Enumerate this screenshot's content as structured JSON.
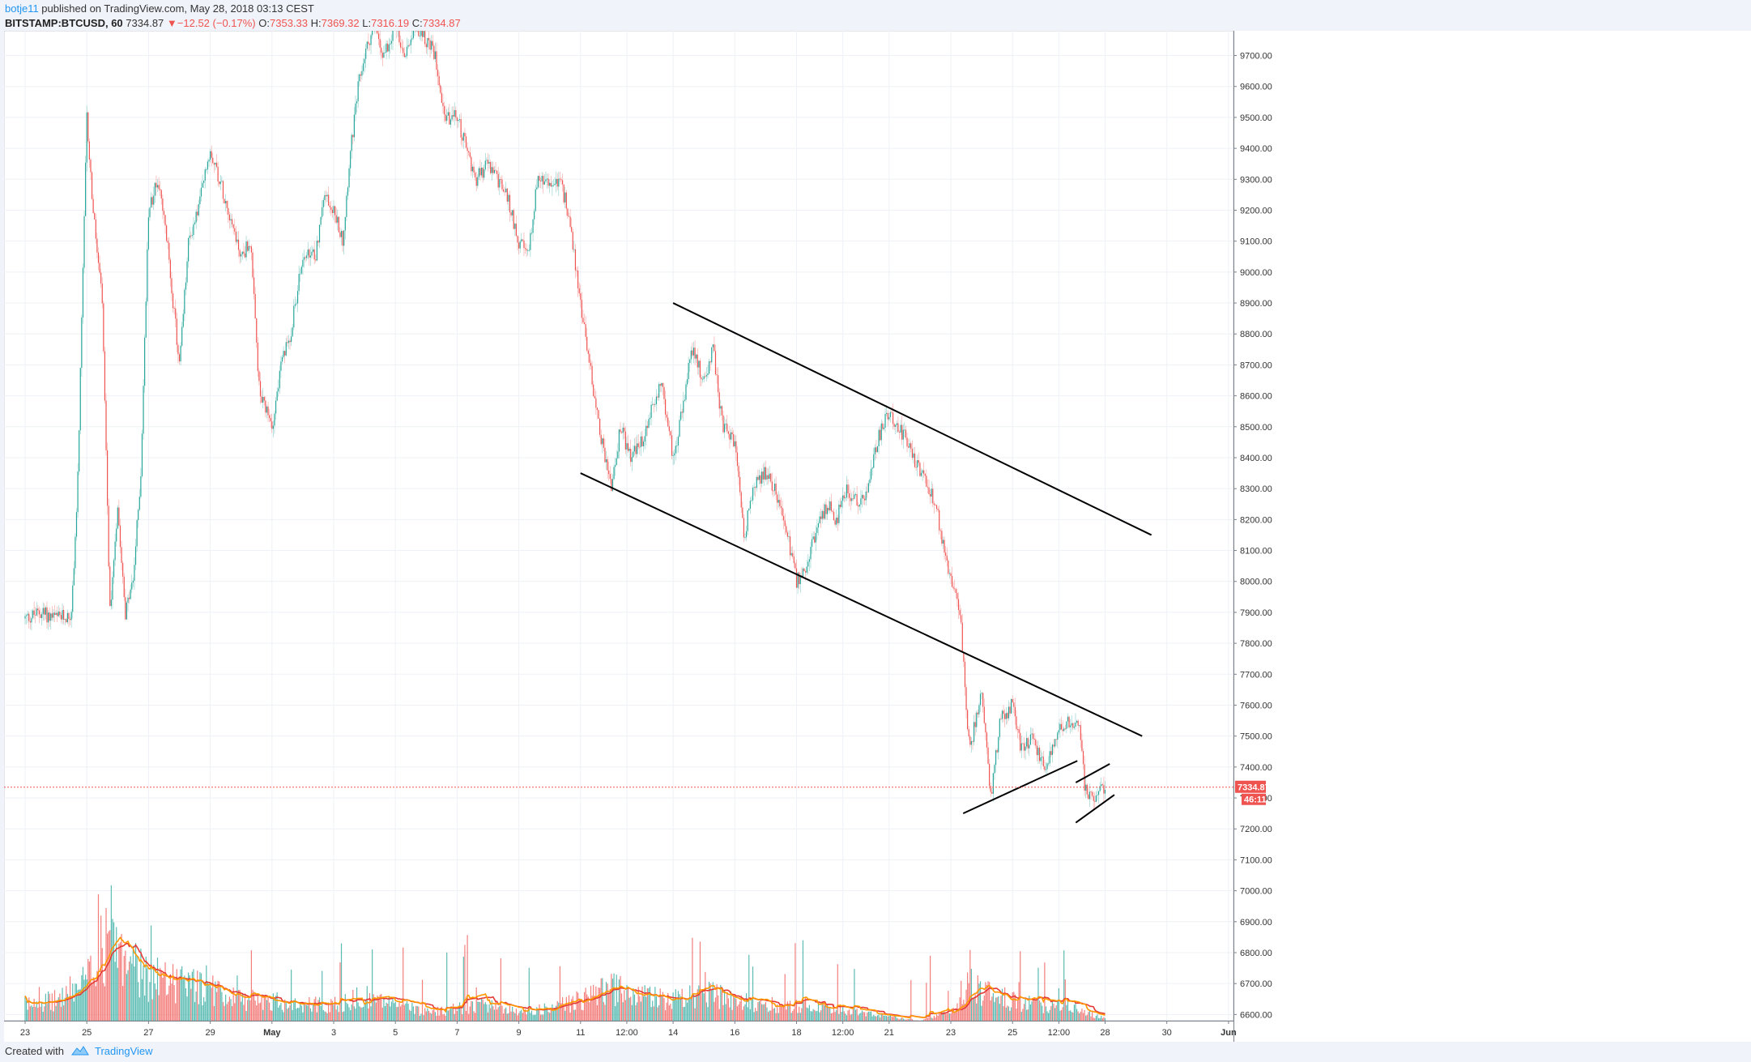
{
  "header": {
    "author": "botje11",
    "published_text": " published on TradingView.com, May 28, 2018 03:13 CEST",
    "symbol": "BITSTAMP:BTCUSD, 60",
    "last_price": "7334.87",
    "down_arrow": "▼",
    "change": "−12.52 (−0.17%)",
    "open_label": "O:",
    "open": "7353.33",
    "high_label": "H:",
    "high": "7369.32",
    "low_label": "L:",
    "low": "7316.19",
    "close_label": "C:",
    "close": "7334.87"
  },
  "footer": {
    "created_with": "Created with",
    "brand": "TradingView"
  },
  "colors": {
    "up": "#26a69a",
    "down": "#ef5350",
    "volume_ma_orange": "#ff9800",
    "volume_ma_red": "#e53935",
    "price_line": "#ef5350",
    "background": "#ffffff",
    "grid": "#eef1f6"
  },
  "chart_data": {
    "type": "candlestick",
    "interval": "60",
    "ylim": [
      6580,
      9780
    ],
    "y_ticks": [
      "9700.00",
      "9600.00",
      "9500.00",
      "9400.00",
      "9300.00",
      "9200.00",
      "9100.00",
      "9000.00",
      "8900.00",
      "8800.00",
      "8700.00",
      "8600.00",
      "8500.00",
      "8400.00",
      "8300.00",
      "8200.00",
      "8100.00",
      "8000.00",
      "7900.00",
      "7800.00",
      "7700.00",
      "7600.00",
      "7500.00",
      "7400.00",
      "7300.00",
      "7200.00",
      "7100.00",
      "7000.00",
      "6900.00",
      "6800.00",
      "6700.00",
      "6600.00"
    ],
    "x_ticks": [
      {
        "label": "23",
        "day": 0
      },
      {
        "label": "25",
        "day": 2
      },
      {
        "label": "27",
        "day": 4
      },
      {
        "label": "29",
        "day": 6
      },
      {
        "label": "May",
        "day": 8
      },
      {
        "label": "3",
        "day": 10
      },
      {
        "label": "5",
        "day": 12
      },
      {
        "label": "7",
        "day": 14
      },
      {
        "label": "9",
        "day": 16
      },
      {
        "label": "11",
        "day": 18
      },
      {
        "label": "12:00",
        "day": 19.5
      },
      {
        "label": "14",
        "day": 21
      },
      {
        "label": "16",
        "day": 23
      },
      {
        "label": "18",
        "day": 25
      },
      {
        "label": "12:00",
        "day": 26.5
      },
      {
        "label": "21",
        "day": 28
      },
      {
        "label": "23",
        "day": 30
      },
      {
        "label": "25",
        "day": 32
      },
      {
        "label": "12:00",
        "day": 33.5
      },
      {
        "label": "28",
        "day": 35
      },
      {
        "label": "30",
        "day": 37
      },
      {
        "label": "Jun",
        "day": 39
      }
    ],
    "price_path": [
      [
        0,
        7880
      ],
      [
        0.5,
        7900
      ],
      [
        1,
        7880
      ],
      [
        1.5,
        7890
      ],
      [
        1.7,
        8300
      ],
      [
        2.0,
        9500
      ],
      [
        2.2,
        9200
      ],
      [
        2.5,
        8900
      ],
      [
        2.75,
        7900
      ],
      [
        3.0,
        8250
      ],
      [
        3.25,
        7900
      ],
      [
        3.5,
        8000
      ],
      [
        3.75,
        8350
      ],
      [
        4.0,
        9200
      ],
      [
        4.3,
        9300
      ],
      [
        4.6,
        9100
      ],
      [
        5.0,
        8700
      ],
      [
        5.3,
        9100
      ],
      [
        5.6,
        9200
      ],
      [
        6.0,
        9400
      ],
      [
        6.3,
        9300
      ],
      [
        6.6,
        9200
      ],
      [
        7.0,
        9050
      ],
      [
        7.3,
        9100
      ],
      [
        7.6,
        8600
      ],
      [
        8.0,
        8500
      ],
      [
        8.3,
        8700
      ],
      [
        8.6,
        8800
      ],
      [
        9.0,
        9050
      ],
      [
        9.4,
        9050
      ],
      [
        9.7,
        9250
      ],
      [
        10.0,
        9200
      ],
      [
        10.3,
        9100
      ],
      [
        10.5,
        9350
      ],
      [
        10.8,
        9600
      ],
      [
        11.0,
        9700
      ],
      [
        11.3,
        9800
      ],
      [
        11.6,
        9700
      ],
      [
        12.0,
        9800
      ],
      [
        12.3,
        9700
      ],
      [
        12.6,
        9800
      ],
      [
        13.0,
        9750
      ],
      [
        13.3,
        9700
      ],
      [
        13.6,
        9500
      ],
      [
        14.0,
        9500
      ],
      [
        14.3,
        9400
      ],
      [
        14.6,
        9300
      ],
      [
        15.0,
        9350
      ],
      [
        15.3,
        9300
      ],
      [
        15.6,
        9250
      ],
      [
        16.0,
        9100
      ],
      [
        16.3,
        9050
      ],
      [
        16.6,
        9300
      ],
      [
        17.0,
        9280
      ],
      [
        17.3,
        9300
      ],
      [
        17.6,
        9200
      ],
      [
        18.0,
        8900
      ],
      [
        18.3,
        8700
      ],
      [
        18.6,
        8500
      ],
      [
        19.0,
        8300
      ],
      [
        19.3,
        8500
      ],
      [
        19.6,
        8400
      ],
      [
        20.0,
        8450
      ],
      [
        20.3,
        8550
      ],
      [
        20.6,
        8650
      ],
      [
        21.0,
        8400
      ],
      [
        21.3,
        8550
      ],
      [
        21.6,
        8750
      ],
      [
        22.0,
        8650
      ],
      [
        22.3,
        8750
      ],
      [
        22.6,
        8500
      ],
      [
        23.0,
        8450
      ],
      [
        23.3,
        8150
      ],
      [
        23.6,
        8300
      ],
      [
        24.0,
        8350
      ],
      [
        24.3,
        8300
      ],
      [
        24.6,
        8200
      ],
      [
        25.0,
        8000
      ],
      [
        25.3,
        8050
      ],
      [
        25.6,
        8150
      ],
      [
        26.0,
        8250
      ],
      [
        26.3,
        8200
      ],
      [
        26.6,
        8300
      ],
      [
        27.0,
        8250
      ],
      [
        27.3,
        8300
      ],
      [
        27.6,
        8450
      ],
      [
        28.0,
        8550
      ],
      [
        28.3,
        8500
      ],
      [
        28.6,
        8450
      ],
      [
        29.0,
        8350
      ],
      [
        29.3,
        8300
      ],
      [
        29.6,
        8200
      ],
      [
        30.0,
        8000
      ],
      [
        30.3,
        7900
      ],
      [
        30.6,
        7450
      ],
      [
        31.0,
        7650
      ],
      [
        31.3,
        7300
      ],
      [
        31.6,
        7550
      ],
      [
        32.0,
        7600
      ],
      [
        32.3,
        7450
      ],
      [
        32.6,
        7500
      ],
      [
        33.0,
        7400
      ],
      [
        33.3,
        7450
      ],
      [
        33.6,
        7530
      ],
      [
        34.0,
        7550
      ],
      [
        34.2,
        7520
      ],
      [
        34.35,
        7320
      ],
      [
        34.6,
        7300
      ],
      [
        34.9,
        7340
      ],
      [
        35.0,
        7335
      ]
    ],
    "volume_path": [
      [
        0,
        6640
      ],
      [
        1,
        6650
      ],
      [
        2,
        6700
      ],
      [
        2.5,
        6780
      ],
      [
        3.0,
        6800
      ],
      [
        3.5,
        6740
      ],
      [
        4,
        6700
      ],
      [
        5,
        6690
      ],
      [
        6,
        6680
      ],
      [
        7,
        6650
      ],
      [
        8,
        6650
      ],
      [
        9,
        6640
      ],
      [
        10,
        6640
      ],
      [
        11,
        6660
      ],
      [
        12,
        6640
      ],
      [
        13,
        6620
      ],
      [
        14,
        6630
      ],
      [
        15,
        6640
      ],
      [
        16,
        6620
      ],
      [
        17,
        6630
      ],
      [
        18,
        6650
      ],
      [
        19,
        6680
      ],
      [
        20,
        6660
      ],
      [
        21,
        6650
      ],
      [
        22,
        6670
      ],
      [
        23,
        6650
      ],
      [
        24,
        6640
      ],
      [
        25,
        6640
      ],
      [
        26,
        6630
      ],
      [
        27,
        6620
      ],
      [
        28,
        6610
      ],
      [
        29,
        6600
      ],
      [
        30,
        6620
      ],
      [
        30.5,
        6690
      ],
      [
        31,
        6680
      ],
      [
        32,
        6650
      ],
      [
        33,
        6640
      ],
      [
        34,
        6630
      ],
      [
        35,
        6605
      ]
    ],
    "upper_trendline": [
      [
        21.0,
        8900
      ],
      [
        36.5,
        8150
      ]
    ],
    "lower_trendline": [
      [
        18.0,
        8350
      ],
      [
        36.2,
        7500
      ]
    ],
    "support_line": [
      [
        30.4,
        7250
      ],
      [
        34.1,
        7420
      ]
    ],
    "small_channel_top": [
      [
        34.05,
        7350
      ],
      [
        35.15,
        7410
      ]
    ],
    "small_channel_bottom": [
      [
        34.05,
        7220
      ],
      [
        35.3,
        7310
      ]
    ],
    "last_price_label": "7334.87",
    "countdown_label": "46:11",
    "hidden_tick_label": "73"
  }
}
